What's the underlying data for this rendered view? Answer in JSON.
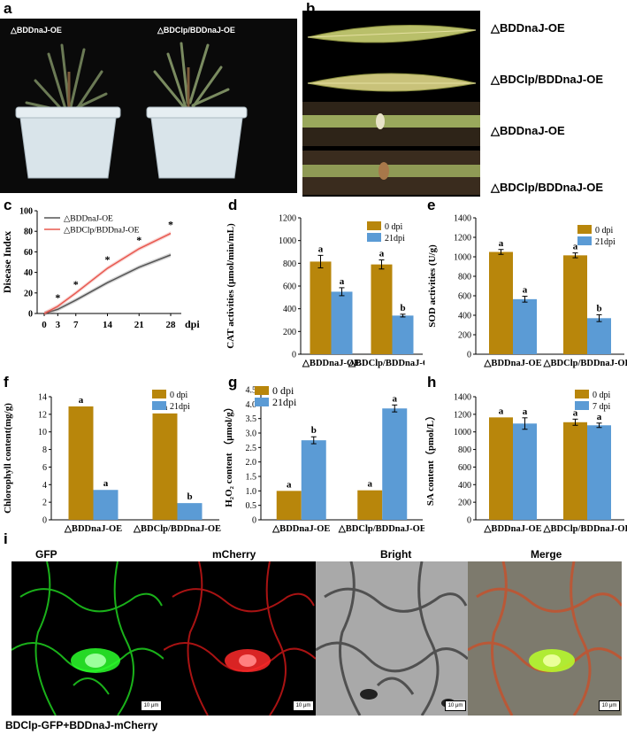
{
  "panel_letters": {
    "a": "a",
    "b": "b",
    "c": "c",
    "d": "d",
    "e": "e",
    "f": "f",
    "g": "g",
    "h": "h",
    "i": "i"
  },
  "panel_a": {
    "left_label": "△BDDnaJ-OE",
    "right_label": "△BDClp/BDDnaJ-OE"
  },
  "panel_b": {
    "labels": [
      "△BDDnaJ-OE",
      "△BDClp/BDDnaJ-OE",
      "△BDDnaJ-OE",
      "△BDClp/BDDnaJ-OE"
    ]
  },
  "panel_i": {
    "titles": [
      "GFP",
      "mCherry",
      "Bright",
      "Merge"
    ],
    "scale_label": "10 μm",
    "caption": "BDClp-GFP+BDDnaJ-mCherry"
  },
  "colors": {
    "gold": "#B8860B",
    "blue": "#5B9BD5",
    "grey_line": "#555555",
    "red_line": "#E8584F"
  },
  "chart_data": [
    {
      "id": "c",
      "type": "line",
      "x": [
        0,
        3,
        7,
        14,
        21,
        28
      ],
      "xtick_labels": [
        "0",
        "3",
        "7",
        "14",
        "21",
        "28"
      ],
      "x_unit": "dpi",
      "ylabel": "Disease Index",
      "ylim": [
        0,
        100
      ],
      "yticks": [
        0,
        20,
        40,
        60,
        80,
        100
      ],
      "series": [
        {
          "name": "△BDDnaJ-OE",
          "values": [
            0,
            4,
            13,
            30,
            45,
            57
          ],
          "color": "#555555"
        },
        {
          "name": "△BDClp/BDDnaJ-OE",
          "values": [
            0,
            7,
            20,
            44,
            63,
            78
          ],
          "color": "#E8584F"
        }
      ],
      "star_x": [
        3,
        7,
        14,
        21,
        28
      ],
      "star_label": "*",
      "legend": "top-left"
    },
    {
      "id": "d",
      "type": "bar",
      "categories": [
        "△BDDnaJ-OE",
        "△BDClp/BDDnaJ-OE"
      ],
      "ylabel": "CAT activities (μmol/min/mL)",
      "ylim": [
        0,
        1200
      ],
      "yticks": [
        0,
        200,
        400,
        600,
        800,
        1000,
        1200
      ],
      "series": [
        {
          "name": "0 dpi",
          "values": [
            815,
            790
          ],
          "errors": [
            55,
            40
          ],
          "letters": [
            "a",
            "a"
          ],
          "color": "#B8860B"
        },
        {
          "name": "21dpi",
          "values": [
            550,
            340
          ],
          "errors": [
            35,
            12
          ],
          "letters": [
            "a",
            "b"
          ],
          "color": "#5B9BD5"
        }
      ],
      "legend": "top-right"
    },
    {
      "id": "e",
      "type": "bar",
      "categories": [
        "△BDDnaJ-OE",
        "△BDClp/BDDnaJ-OE"
      ],
      "ylabel": "SOD activities (U/g)",
      "ylim": [
        0,
        1400
      ],
      "yticks": [
        0,
        200,
        400,
        600,
        800,
        1000,
        1200,
        1400
      ],
      "series": [
        {
          "name": "0 dpi",
          "values": [
            1050,
            1015
          ],
          "errors": [
            25,
            25
          ],
          "letters": [
            "a",
            "a"
          ],
          "color": "#B8860B"
        },
        {
          "name": "21dpi",
          "values": [
            565,
            370
          ],
          "errors": [
            30,
            35
          ],
          "letters": [
            "a",
            "b"
          ],
          "color": "#5B9BD5"
        }
      ],
      "legend": "top-right"
    },
    {
      "id": "f",
      "type": "bar",
      "categories": [
        "△BDDnaJ-OE",
        "△BDClp/BDDnaJ-OE"
      ],
      "ylabel": "Chlorophyll content(mg/g)",
      "ylim": [
        0,
        14
      ],
      "yticks": [
        0,
        2,
        4,
        6,
        8,
        10,
        12,
        14
      ],
      "series": [
        {
          "name": "0 dpi",
          "values": [
            12.9,
            12.1
          ],
          "errors": [
            0,
            0
          ],
          "letters": [
            "a",
            "a"
          ],
          "color": "#B8860B"
        },
        {
          "name": "21dpi",
          "values": [
            3.4,
            1.9
          ],
          "errors": [
            0,
            0
          ],
          "letters": [
            "a",
            "b"
          ],
          "color": "#5B9BD5"
        }
      ],
      "legend": "top-right"
    },
    {
      "id": "g",
      "type": "bar",
      "categories": [
        "△BDDnaJ-OE",
        "△BDClp/BDDnaJ-OE"
      ],
      "ylabel": "H₂O₂ content （μmol/g）",
      "ylim": [
        0,
        4.5
      ],
      "yticks": [
        0,
        0.5,
        1.0,
        1.5,
        2.0,
        2.5,
        3.0,
        3.5,
        4.0,
        4.5
      ],
      "ytick_labels": [
        "0",
        "0.5",
        "1.0",
        "1.5",
        "2.0",
        "2.5",
        "3.0",
        "3.5",
        "4.0",
        "4.5"
      ],
      "series": [
        {
          "name": "0 dpi",
          "values": [
            1.0,
            1.02
          ],
          "errors": [
            0,
            0
          ],
          "letters": [
            "a",
            "a"
          ],
          "color": "#B8860B"
        },
        {
          "name": "21dpi",
          "values": [
            2.75,
            3.85
          ],
          "errors": [
            0.12,
            0.12
          ],
          "letters": [
            "b",
            "a"
          ],
          "color": "#5B9BD5"
        }
      ],
      "legend": "top-left"
    },
    {
      "id": "h",
      "type": "bar",
      "categories": [
        "△BDDnaJ-OE",
        "△BDClp/BDDnaJ-OE"
      ],
      "ylabel": "SA content（pmol/L）",
      "ylim": [
        0,
        1400
      ],
      "yticks": [
        0,
        200,
        400,
        600,
        800,
        1000,
        1200,
        1400
      ],
      "series": [
        {
          "name": "0 dpi",
          "values": [
            1165,
            1110
          ],
          "errors": [
            0,
            35
          ],
          "letters": [
            "a",
            "a"
          ],
          "color": "#B8860B"
        },
        {
          "name": "7 dpi",
          "values": [
            1095,
            1075
          ],
          "errors": [
            65,
            25
          ],
          "letters": [
            "a",
            "a"
          ],
          "color": "#5B9BD5"
        }
      ],
      "legend": "top-right"
    }
  ]
}
